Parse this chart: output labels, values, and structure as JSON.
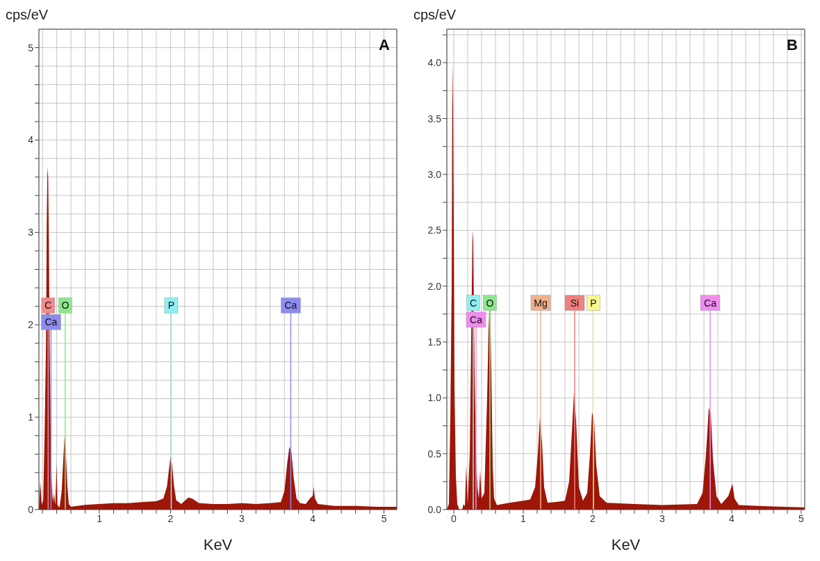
{
  "chart_data": [
    {
      "type": "area",
      "title": "A",
      "xlabel": "KeV",
      "ylabel": "cps/eV",
      "grid": true,
      "legend": false,
      "xlim": [
        0.15,
        5.18
      ],
      "ylim": [
        0,
        5.2
      ],
      "xticks": [
        {
          "value": 0.2,
          "label": null
        },
        {
          "value": 0.4,
          "label": null
        },
        {
          "value": 0.6,
          "label": null
        },
        {
          "value": 0.8,
          "label": null
        },
        1,
        {
          "value": 1.2,
          "label": null
        },
        {
          "value": 1.4,
          "label": null
        },
        {
          "value": 1.6,
          "label": null
        },
        {
          "value": 1.8,
          "label": null
        },
        2,
        {
          "value": 2.2,
          "label": null
        },
        {
          "value": 2.4,
          "label": null
        },
        {
          "value": 2.6,
          "label": null
        },
        {
          "value": 2.8,
          "label": null
        },
        3,
        {
          "value": 3.2,
          "label": null
        },
        {
          "value": 3.4,
          "label": null
        },
        {
          "value": 3.6,
          "label": null
        },
        {
          "value": 3.8,
          "label": null
        },
        4,
        {
          "value": 4.2,
          "label": null
        },
        {
          "value": 4.4,
          "label": null
        },
        {
          "value": 4.6,
          "label": null
        },
        {
          "value": 4.8,
          "label": null
        },
        5
      ],
      "yticks": [
        0,
        {
          "value": 0.2,
          "label": null
        },
        {
          "value": 0.4,
          "label": null
        },
        {
          "value": 0.6,
          "label": null
        },
        {
          "value": 0.8,
          "label": null
        },
        1,
        {
          "value": 1.2,
          "label": null
        },
        {
          "value": 1.4,
          "label": null
        },
        {
          "value": 1.6,
          "label": null
        },
        {
          "value": 1.8,
          "label": null
        },
        2,
        {
          "value": 2.2,
          "label": null
        },
        {
          "value": 2.4,
          "label": null
        },
        {
          "value": 2.6,
          "label": null
        },
        {
          "value": 2.8,
          "label": null
        },
        3,
        {
          "value": 3.2,
          "label": null
        },
        {
          "value": 3.4,
          "label": null
        },
        {
          "value": 3.6,
          "label": null
        },
        {
          "value": 3.8,
          "label": null
        },
        4,
        {
          "value": 4.2,
          "label": null
        },
        {
          "value": 4.4,
          "label": null
        },
        {
          "value": 4.6,
          "label": null
        },
        {
          "value": 4.8,
          "label": null
        },
        5
      ],
      "annotations": [
        {
          "text": "C",
          "x": 0.28,
          "y": 2.21
        },
        {
          "text": "O",
          "x": 0.52,
          "y": 2.21
        },
        {
          "text": "Ca",
          "x": 0.32,
          "y": 2.03
        },
        {
          "text": "P",
          "x": 2.01,
          "y": 2.21
        },
        {
          "text": "Ca",
          "x": 3.69,
          "y": 2.21
        }
      ],
      "series": [
        {
          "color": "#9e1608",
          "x": [
            0.15,
            0.17,
            0.19,
            0.21,
            0.23,
            0.25,
            0.26,
            0.27,
            0.28,
            0.29,
            0.3,
            0.31,
            0.32,
            0.33,
            0.34,
            0.35,
            0.36,
            0.38,
            0.4,
            0.41,
            0.44,
            0.47,
            0.49,
            0.51,
            0.52,
            0.53,
            0.55,
            0.57,
            0.6,
            0.8,
            1.0,
            1.2,
            1.4,
            1.6,
            1.8,
            1.9,
            1.95,
            1.98,
            2.0,
            2.02,
            2.05,
            2.08,
            2.15,
            2.25,
            2.3,
            2.4,
            2.6,
            2.8,
            3.0,
            3.2,
            3.4,
            3.55,
            3.6,
            3.64,
            3.67,
            3.7,
            3.73,
            3.77,
            3.82,
            3.9,
            3.96,
            4.0,
            4.01,
            4.03,
            4.07,
            4.3,
            4.6,
            4.9,
            5.18
          ],
          "values": [
            0,
            0.3,
            0.05,
            0.1,
            0.8,
            1.8,
            3.1,
            3.71,
            3.6,
            2.9,
            1.8,
            1.2,
            0.6,
            0.3,
            0.15,
            0.08,
            0.18,
            0.05,
            0.5,
            0.05,
            0.02,
            0.2,
            0.5,
            0.78,
            0.8,
            0.6,
            0.25,
            0.06,
            0.03,
            0.05,
            0.06,
            0.07,
            0.07,
            0.08,
            0.09,
            0.12,
            0.25,
            0.45,
            0.57,
            0.5,
            0.25,
            0.1,
            0.06,
            0.13,
            0.12,
            0.07,
            0.06,
            0.06,
            0.07,
            0.06,
            0.07,
            0.08,
            0.2,
            0.5,
            0.68,
            0.62,
            0.35,
            0.12,
            0.07,
            0.06,
            0.12,
            0.15,
            0.25,
            0.12,
            0.06,
            0.04,
            0.04,
            0.03,
            0.03
          ]
        }
      ]
    },
    {
      "type": "area",
      "title": "B",
      "xlabel": "KeV",
      "ylabel": "cps/eV",
      "grid": true,
      "legend": false,
      "xlim": [
        -0.1,
        5.05
      ],
      "ylim": [
        0,
        4.3
      ],
      "xticks": [
        0,
        {
          "value": 0.2,
          "label": null
        },
        {
          "value": 0.4,
          "label": null
        },
        {
          "value": 0.6,
          "label": null
        },
        {
          "value": 0.8,
          "label": null
        },
        1,
        {
          "value": 1.2,
          "label": null
        },
        {
          "value": 1.4,
          "label": null
        },
        {
          "value": 1.6,
          "label": null
        },
        {
          "value": 1.8,
          "label": null
        },
        2,
        {
          "value": 2.2,
          "label": null
        },
        {
          "value": 2.4,
          "label": null
        },
        {
          "value": 2.6,
          "label": null
        },
        {
          "value": 2.8,
          "label": null
        },
        3,
        {
          "value": 3.2,
          "label": null
        },
        {
          "value": 3.4,
          "label": null
        },
        {
          "value": 3.6,
          "label": null
        },
        {
          "value": 3.8,
          "label": null
        },
        4,
        {
          "value": 4.2,
          "label": null
        },
        {
          "value": 4.4,
          "label": null
        },
        {
          "value": 4.6,
          "label": null
        },
        {
          "value": 4.8,
          "label": null
        },
        5
      ],
      "yticks": [
        {
          "value": 0,
          "label": "0.0"
        },
        {
          "value": 0.25,
          "label": null
        },
        0.5,
        {
          "value": 0.75,
          "label": null
        },
        {
          "value": 1,
          "label": "1.0"
        },
        {
          "value": 1.25,
          "label": null
        },
        1.5,
        {
          "value": 1.75,
          "label": null
        },
        {
          "value": 2,
          "label": "2.0"
        },
        {
          "value": 2.25,
          "label": null
        },
        2.5,
        {
          "value": 2.75,
          "label": null
        },
        {
          "value": 3,
          "label": "3.0"
        },
        {
          "value": 3.25,
          "label": null
        },
        3.5,
        {
          "value": 3.75,
          "label": null
        },
        {
          "value": 4,
          "label": "4.0"
        },
        {
          "value": 4.25,
          "label": null
        }
      ],
      "annotations": [
        {
          "text": "C",
          "x": 0.28,
          "y": 1.85
        },
        {
          "text": "O",
          "x": 0.52,
          "y": 1.85
        },
        {
          "text": "Ca",
          "x": 0.32,
          "y": 1.7
        },
        {
          "text": "Mg",
          "x": 1.25,
          "y": 1.85
        },
        {
          "text": "Si",
          "x": 1.74,
          "y": 1.85
        },
        {
          "text": "P",
          "x": 2.01,
          "y": 1.85
        },
        {
          "text": "Ca",
          "x": 3.69,
          "y": 1.85
        }
      ],
      "series": [
        {
          "color": "#9e1608",
          "x": [
            -0.1,
            -0.07,
            -0.05,
            -0.03,
            -0.02,
            -0.01,
            0.0,
            0.01,
            0.03,
            0.05,
            0.08,
            0.12,
            0.14,
            0.16,
            0.18,
            0.2,
            0.23,
            0.25,
            0.27,
            0.28,
            0.3,
            0.32,
            0.34,
            0.36,
            0.38,
            0.4,
            0.44,
            0.48,
            0.5,
            0.52,
            0.54,
            0.56,
            0.58,
            0.62,
            0.8,
            1.0,
            1.1,
            1.17,
            1.21,
            1.24,
            1.27,
            1.3,
            1.35,
            1.5,
            1.6,
            1.66,
            1.7,
            1.73,
            1.76,
            1.8,
            1.86,
            1.92,
            1.96,
            1.99,
            2.02,
            2.05,
            2.1,
            2.2,
            2.6,
            3.0,
            3.5,
            3.58,
            3.63,
            3.67,
            3.7,
            3.73,
            3.78,
            3.85,
            3.95,
            4.01,
            4.04,
            4.1,
            4.5,
            5.0,
            5.05
          ],
          "values": [
            0,
            0.05,
            0.8,
            2.0,
            4.0,
            3.6,
            2.5,
            1.1,
            0.3,
            0.05,
            0,
            0,
            0.05,
            0.03,
            0.4,
            0.05,
            0.5,
            1.5,
            2.5,
            2.4,
            1.2,
            0.5,
            0.2,
            0.1,
            0.35,
            0.1,
            0.15,
            1.0,
            1.6,
            1.93,
            1.25,
            0.4,
            0.1,
            0.04,
            0.06,
            0.08,
            0.09,
            0.2,
            0.5,
            0.83,
            0.6,
            0.2,
            0.06,
            0.07,
            0.08,
            0.25,
            0.7,
            1.05,
            0.8,
            0.2,
            0.08,
            0.15,
            0.5,
            0.87,
            0.8,
            0.4,
            0.12,
            0.06,
            0.05,
            0.04,
            0.05,
            0.15,
            0.5,
            0.91,
            0.85,
            0.45,
            0.12,
            0.05,
            0.12,
            0.23,
            0.1,
            0.04,
            0.03,
            0.02,
            0.02
          ]
        }
      ]
    }
  ]
}
